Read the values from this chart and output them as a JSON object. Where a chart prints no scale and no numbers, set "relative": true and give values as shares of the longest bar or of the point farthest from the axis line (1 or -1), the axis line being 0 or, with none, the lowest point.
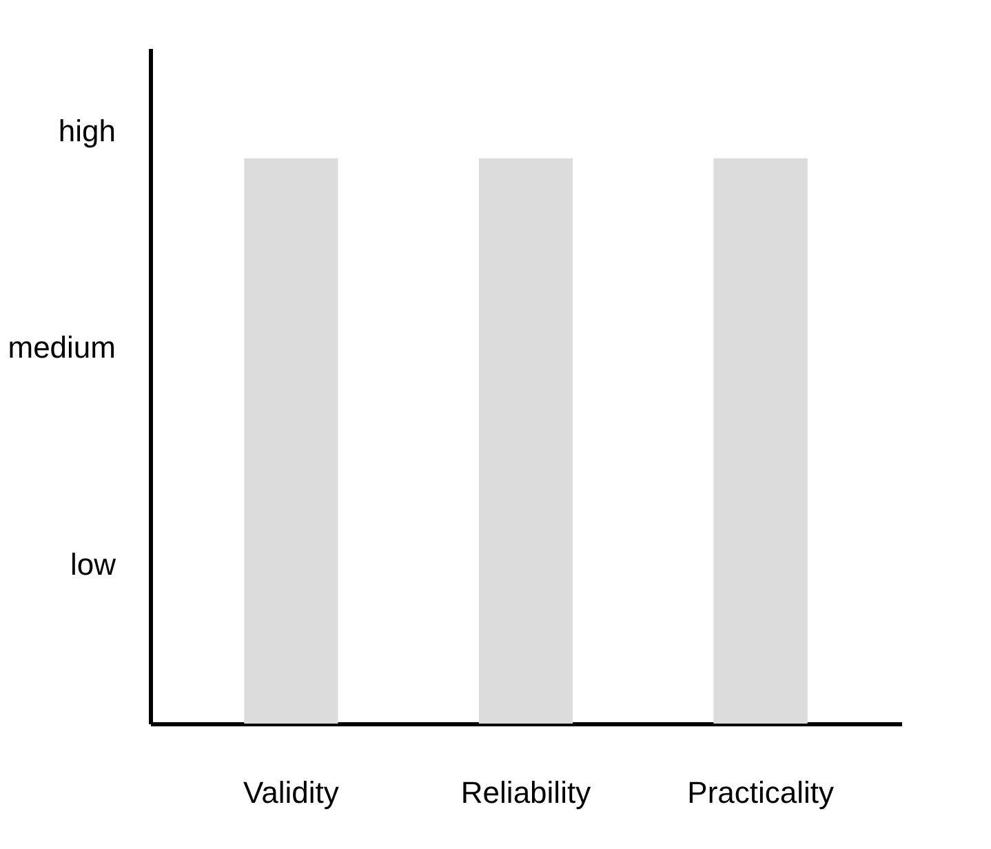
{
  "chart_data": {
    "type": "bar",
    "categories": [
      "Validity",
      "Reliability",
      "Practicality"
    ],
    "values": [
      1,
      1,
      1
    ],
    "color": "#dcdcdc",
    "relative": true,
    "annotations": [
      "high",
      "medium",
      "low"
    ],
    "grid": false
  }
}
